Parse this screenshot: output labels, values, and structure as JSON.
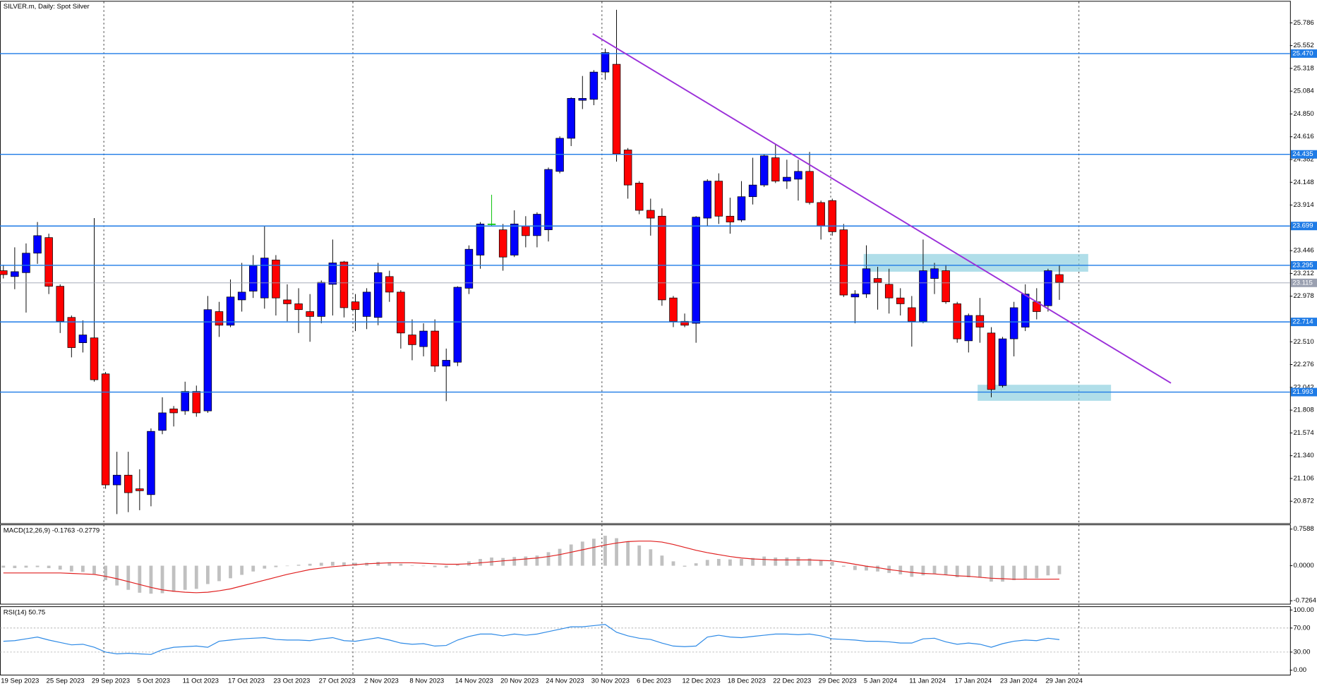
{
  "chart_data": [
    {
      "type": "candlestick",
      "title": "SILVER.m, Daily:  Spot Silver",
      "categories": [
        "19 Sep 2023",
        null,
        null,
        null,
        "25 Sep 2023",
        null,
        null,
        null,
        "29 Sep 2023",
        null,
        null,
        null,
        "5 Oct 2023",
        null,
        null,
        null,
        "11 Oct 2023",
        null,
        null,
        null,
        "17 Oct 2023",
        null,
        null,
        null,
        "23 Oct 2023",
        null,
        null,
        null,
        "27 Oct 2023",
        null,
        null,
        null,
        "2 Nov 2023",
        null,
        null,
        null,
        "8 Nov 2023",
        null,
        null,
        null,
        "14 Nov 2023",
        null,
        null,
        null,
        "20 Nov 2023",
        null,
        null,
        null,
        "24 Nov 2023",
        null,
        null,
        null,
        "30 Nov 2023",
        null,
        null,
        null,
        "6 Dec 2023",
        null,
        null,
        null,
        "12 Dec 2023",
        null,
        null,
        null,
        "18 Dec 2023",
        null,
        null,
        null,
        "22 Dec 2023",
        null,
        null,
        null,
        "29 Dec 2023",
        null,
        null,
        null,
        "5 Jan 2024",
        null,
        null,
        null,
        "11 Jan 2024",
        null,
        null,
        null,
        "17 Jan 2024",
        null,
        null,
        null,
        "23 Jan 2024",
        null,
        null,
        null,
        "29 Jan 2024",
        null
      ],
      "open": [
        23.24,
        23.18,
        23.22,
        23.42,
        23.58,
        23.08,
        22.76,
        22.5,
        22.55,
        22.18,
        21.04,
        21.14,
        21.0,
        20.94,
        21.6,
        21.82,
        21.8,
        22.0,
        21.8,
        22.82,
        22.68,
        22.94,
        23.03,
        22.96,
        23.35,
        22.94,
        22.9,
        22.82,
        22.77,
        23.1,
        23.33,
        22.92,
        22.77,
        22.76,
        23.18,
        23.02,
        22.58,
        22.46,
        22.62,
        22.26,
        22.3,
        23.06,
        23.4,
        23.72,
        23.66,
        23.4,
        23.7,
        23.6,
        23.66,
        24.26,
        24.6,
        24.99,
        25.0,
        25.28,
        25.36,
        24.48,
        24.14,
        23.86,
        23.8,
        22.96,
        22.72,
        22.7,
        23.78,
        24.16,
        23.8,
        23.76,
        24.0,
        24.12,
        24.4,
        24.16,
        24.18,
        24.26,
        23.94,
        23.96,
        23.66,
        22.97,
        23.0,
        23.16,
        23.1,
        22.96,
        22.86,
        22.72,
        23.16,
        23.24,
        22.9,
        22.52,
        22.78,
        22.6,
        22.06,
        22.54,
        22.66,
        22.92,
        22.88,
        23.2
      ],
      "high": [
        23.3,
        23.48,
        23.52,
        23.74,
        23.62,
        23.1,
        22.78,
        22.73,
        23.78,
        22.2,
        21.38,
        21.38,
        21.2,
        21.62,
        21.94,
        21.85,
        22.1,
        22.06,
        22.98,
        22.92,
        23.15,
        23.32,
        23.4,
        23.7,
        23.4,
        23.1,
        23.06,
        23.0,
        23.14,
        23.56,
        23.34,
        23.0,
        23.06,
        23.32,
        23.24,
        23.04,
        22.74,
        22.7,
        22.74,
        22.44,
        23.08,
        23.5,
        23.74,
        24.02,
        23.72,
        23.86,
        23.8,
        23.84,
        24.3,
        24.62,
        25.02,
        25.24,
        25.3,
        25.52,
        25.92,
        24.5,
        24.16,
        23.98,
        23.88,
        22.98,
        22.8,
        23.8,
        24.18,
        24.24,
        23.99,
        24.16,
        24.4,
        24.44,
        24.54,
        24.38,
        24.38,
        24.46,
        23.96,
        23.98,
        23.72,
        23.04,
        23.5,
        23.28,
        23.26,
        23.06,
        22.98,
        23.56,
        23.32,
        23.3,
        22.92,
        22.8,
        22.96,
        22.66,
        22.56,
        22.92,
        23.1,
        23.06,
        23.26,
        23.3
      ],
      "low": [
        23.16,
        23.05,
        22.81,
        23.31,
        23.0,
        22.6,
        22.35,
        22.4,
        22.1,
        21.0,
        20.74,
        20.76,
        20.78,
        20.82,
        21.56,
        21.64,
        21.76,
        21.74,
        21.78,
        22.56,
        22.66,
        22.82,
        22.96,
        22.85,
        22.78,
        22.72,
        22.6,
        22.51,
        22.7,
        22.78,
        22.76,
        22.62,
        22.64,
        22.68,
        22.92,
        22.44,
        22.32,
        22.36,
        22.2,
        21.9,
        22.26,
        23.0,
        23.26,
        23.7,
        23.24,
        23.38,
        23.48,
        23.48,
        23.54,
        24.24,
        24.52,
        24.9,
        24.94,
        25.2,
        24.36,
        23.98,
        23.82,
        23.6,
        22.88,
        22.66,
        22.66,
        22.5,
        23.7,
        23.72,
        23.62,
        23.74,
        23.92,
        24.1,
        24.14,
        24.08,
        23.96,
        23.92,
        23.56,
        23.6,
        22.97,
        22.7,
        22.96,
        22.84,
        22.8,
        22.78,
        22.46,
        22.7,
        23.0,
        22.9,
        22.5,
        22.4,
        22.5,
        21.94,
        22.04,
        22.36,
        22.62,
        22.74,
        22.82,
        22.94
      ],
      "close": [
        23.2,
        23.23,
        23.42,
        23.6,
        23.08,
        22.72,
        22.45,
        22.58,
        22.12,
        21.04,
        21.14,
        20.96,
        20.98,
        21.59,
        21.78,
        21.78,
        22.0,
        21.78,
        22.84,
        22.68,
        22.97,
        23.02,
        23.29,
        23.37,
        22.96,
        22.9,
        22.84,
        22.77,
        23.12,
        23.32,
        22.86,
        22.84,
        23.02,
        23.22,
        23.02,
        22.6,
        22.48,
        22.62,
        22.26,
        22.32,
        23.07,
        23.46,
        23.72,
        23.72,
        23.38,
        23.72,
        23.6,
        23.82,
        24.28,
        24.6,
        25.01,
        25.01,
        25.28,
        25.48,
        24.44,
        24.12,
        23.86,
        23.78,
        22.94,
        22.72,
        22.68,
        23.79,
        24.16,
        23.8,
        23.74,
        24.0,
        24.12,
        24.42,
        24.16,
        24.2,
        24.26,
        23.94,
        23.7,
        23.64,
        22.99,
        23.0,
        23.26,
        23.12,
        22.96,
        22.9,
        22.72,
        23.24,
        23.26,
        22.92,
        22.54,
        22.78,
        22.66,
        22.02,
        22.54,
        22.86,
        23.0,
        22.82,
        23.24,
        23.12
      ],
      "up_color": "#0000ff",
      "down_color": "#ff0000",
      "doji_color": "#00c000",
      "ylim": [
        20.647,
        26.003
      ],
      "yticks": [
        25.786,
        25.552,
        25.318,
        25.084,
        {
          "value": 24.85,
          "label": "24.850"
        },
        24.616,
        24.382,
        24.148,
        23.914,
        23.446,
        23.212,
        22.978,
        {
          "value": 22.51,
          "label": "22.510"
        },
        22.276,
        22.042,
        21.808,
        21.574,
        {
          "value": 21.34,
          "label": "21.340"
        },
        21.106,
        20.872
      ],
      "levels": [
        {
          "value": 25.47,
          "label": "25.470"
        },
        24.435,
        23.699,
        23.295,
        22.714,
        21.993
      ],
      "level_color": "#1e7be6",
      "price_line": 23.115,
      "price_line_color": "#9aa0b0"
    },
    {
      "type": "macd",
      "title": "MACD(12,26,9) -0.1763 -0.2779",
      "values": [
        -0.04,
        -0.05,
        -0.04,
        -0.03,
        -0.05,
        -0.08,
        -0.12,
        -0.13,
        -0.17,
        -0.3,
        -0.41,
        -0.5,
        -0.56,
        -0.58,
        -0.57,
        -0.54,
        -0.5,
        -0.48,
        -0.38,
        -0.32,
        -0.26,
        -0.19,
        -0.12,
        -0.06,
        -0.03,
        0.0,
        0.02,
        0.04,
        0.06,
        0.08,
        0.07,
        0.06,
        0.06,
        0.08,
        0.07,
        0.04,
        0.01,
        -0.01,
        -0.03,
        -0.04,
        0.02,
        0.09,
        0.14,
        0.17,
        0.16,
        0.18,
        0.19,
        0.21,
        0.28,
        0.35,
        0.44,
        0.5,
        0.56,
        0.62,
        0.57,
        0.5,
        0.42,
        0.34,
        0.21,
        0.09,
        -0.02,
        0.05,
        0.12,
        0.14,
        0.13,
        0.14,
        0.16,
        0.19,
        0.17,
        0.17,
        0.18,
        0.15,
        0.11,
        0.08,
        -0.02,
        -0.09,
        -0.1,
        -0.12,
        -0.15,
        -0.18,
        -0.23,
        -0.2,
        -0.17,
        -0.19,
        -0.24,
        -0.24,
        -0.25,
        -0.33,
        -0.33,
        -0.3,
        -0.27,
        -0.26,
        -0.2,
        -0.1763
      ],
      "color": "#c0c0c0",
      "signal": [
        -0.15,
        -0.15,
        -0.15,
        -0.15,
        -0.15,
        -0.15,
        -0.16,
        -0.17,
        -0.18,
        -0.22,
        -0.27,
        -0.33,
        -0.39,
        -0.45,
        -0.5,
        -0.53,
        -0.55,
        -0.56,
        -0.55,
        -0.52,
        -0.48,
        -0.42,
        -0.36,
        -0.3,
        -0.24,
        -0.18,
        -0.13,
        -0.08,
        -0.05,
        -0.02,
        0.0,
        0.02,
        0.04,
        0.05,
        0.06,
        0.06,
        0.06,
        0.05,
        0.04,
        0.03,
        0.03,
        0.04,
        0.06,
        0.08,
        0.1,
        0.12,
        0.14,
        0.16,
        0.19,
        0.23,
        0.28,
        0.33,
        0.38,
        0.43,
        0.47,
        0.5,
        0.51,
        0.51,
        0.49,
        0.44,
        0.38,
        0.32,
        0.27,
        0.23,
        0.19,
        0.16,
        0.14,
        0.13,
        0.12,
        0.12,
        0.12,
        0.12,
        0.11,
        0.1,
        0.07,
        0.03,
        -0.01,
        -0.04,
        -0.08,
        -0.11,
        -0.14,
        -0.16,
        -0.17,
        -0.19,
        -0.21,
        -0.22,
        -0.24,
        -0.26,
        -0.27,
        -0.28,
        -0.28,
        -0.28,
        -0.28,
        -0.2779
      ],
      "signal_color": "#e02020",
      "ylim": [
        -0.797,
        0.847
      ],
      "yticks": [
        0.7588,
        {
          "value": 0,
          "label": "0.0000"
        },
        -0.7264
      ]
    },
    {
      "type": "line",
      "title": "RSI(14) 50.75",
      "values": [
        48,
        49,
        52,
        55,
        50,
        46,
        42,
        43,
        38,
        30,
        27,
        28,
        27,
        26,
        34,
        38,
        39,
        40,
        38,
        48,
        50,
        52,
        53,
        54,
        51,
        50,
        50,
        49,
        52,
        54,
        49,
        48,
        51,
        54,
        50,
        45,
        43,
        44,
        40,
        41,
        50,
        56,
        60,
        60,
        57,
        60,
        58,
        60,
        64,
        68,
        72,
        72,
        74,
        76,
        63,
        57,
        53,
        51,
        45,
        40,
        39,
        40,
        55,
        58,
        55,
        54,
        56,
        58,
        60,
        60,
        59,
        60,
        57,
        52,
        51,
        50,
        48,
        48,
        47,
        45,
        45,
        52,
        53,
        47,
        43,
        45,
        43,
        38,
        44,
        48,
        50,
        49,
        53,
        50.75
      ],
      "color": "#2e8ae6",
      "ylim": [
        -8.2,
        105.5
      ],
      "yticks": [
        {
          "value": 100,
          "label": "100.00"
        },
        {
          "value": 70,
          "label": "70.00"
        },
        {
          "value": 30,
          "label": "30.00"
        },
        {
          "value": 0,
          "label": "0.00"
        }
      ],
      "levels": [
        70,
        30
      ]
    }
  ]
}
